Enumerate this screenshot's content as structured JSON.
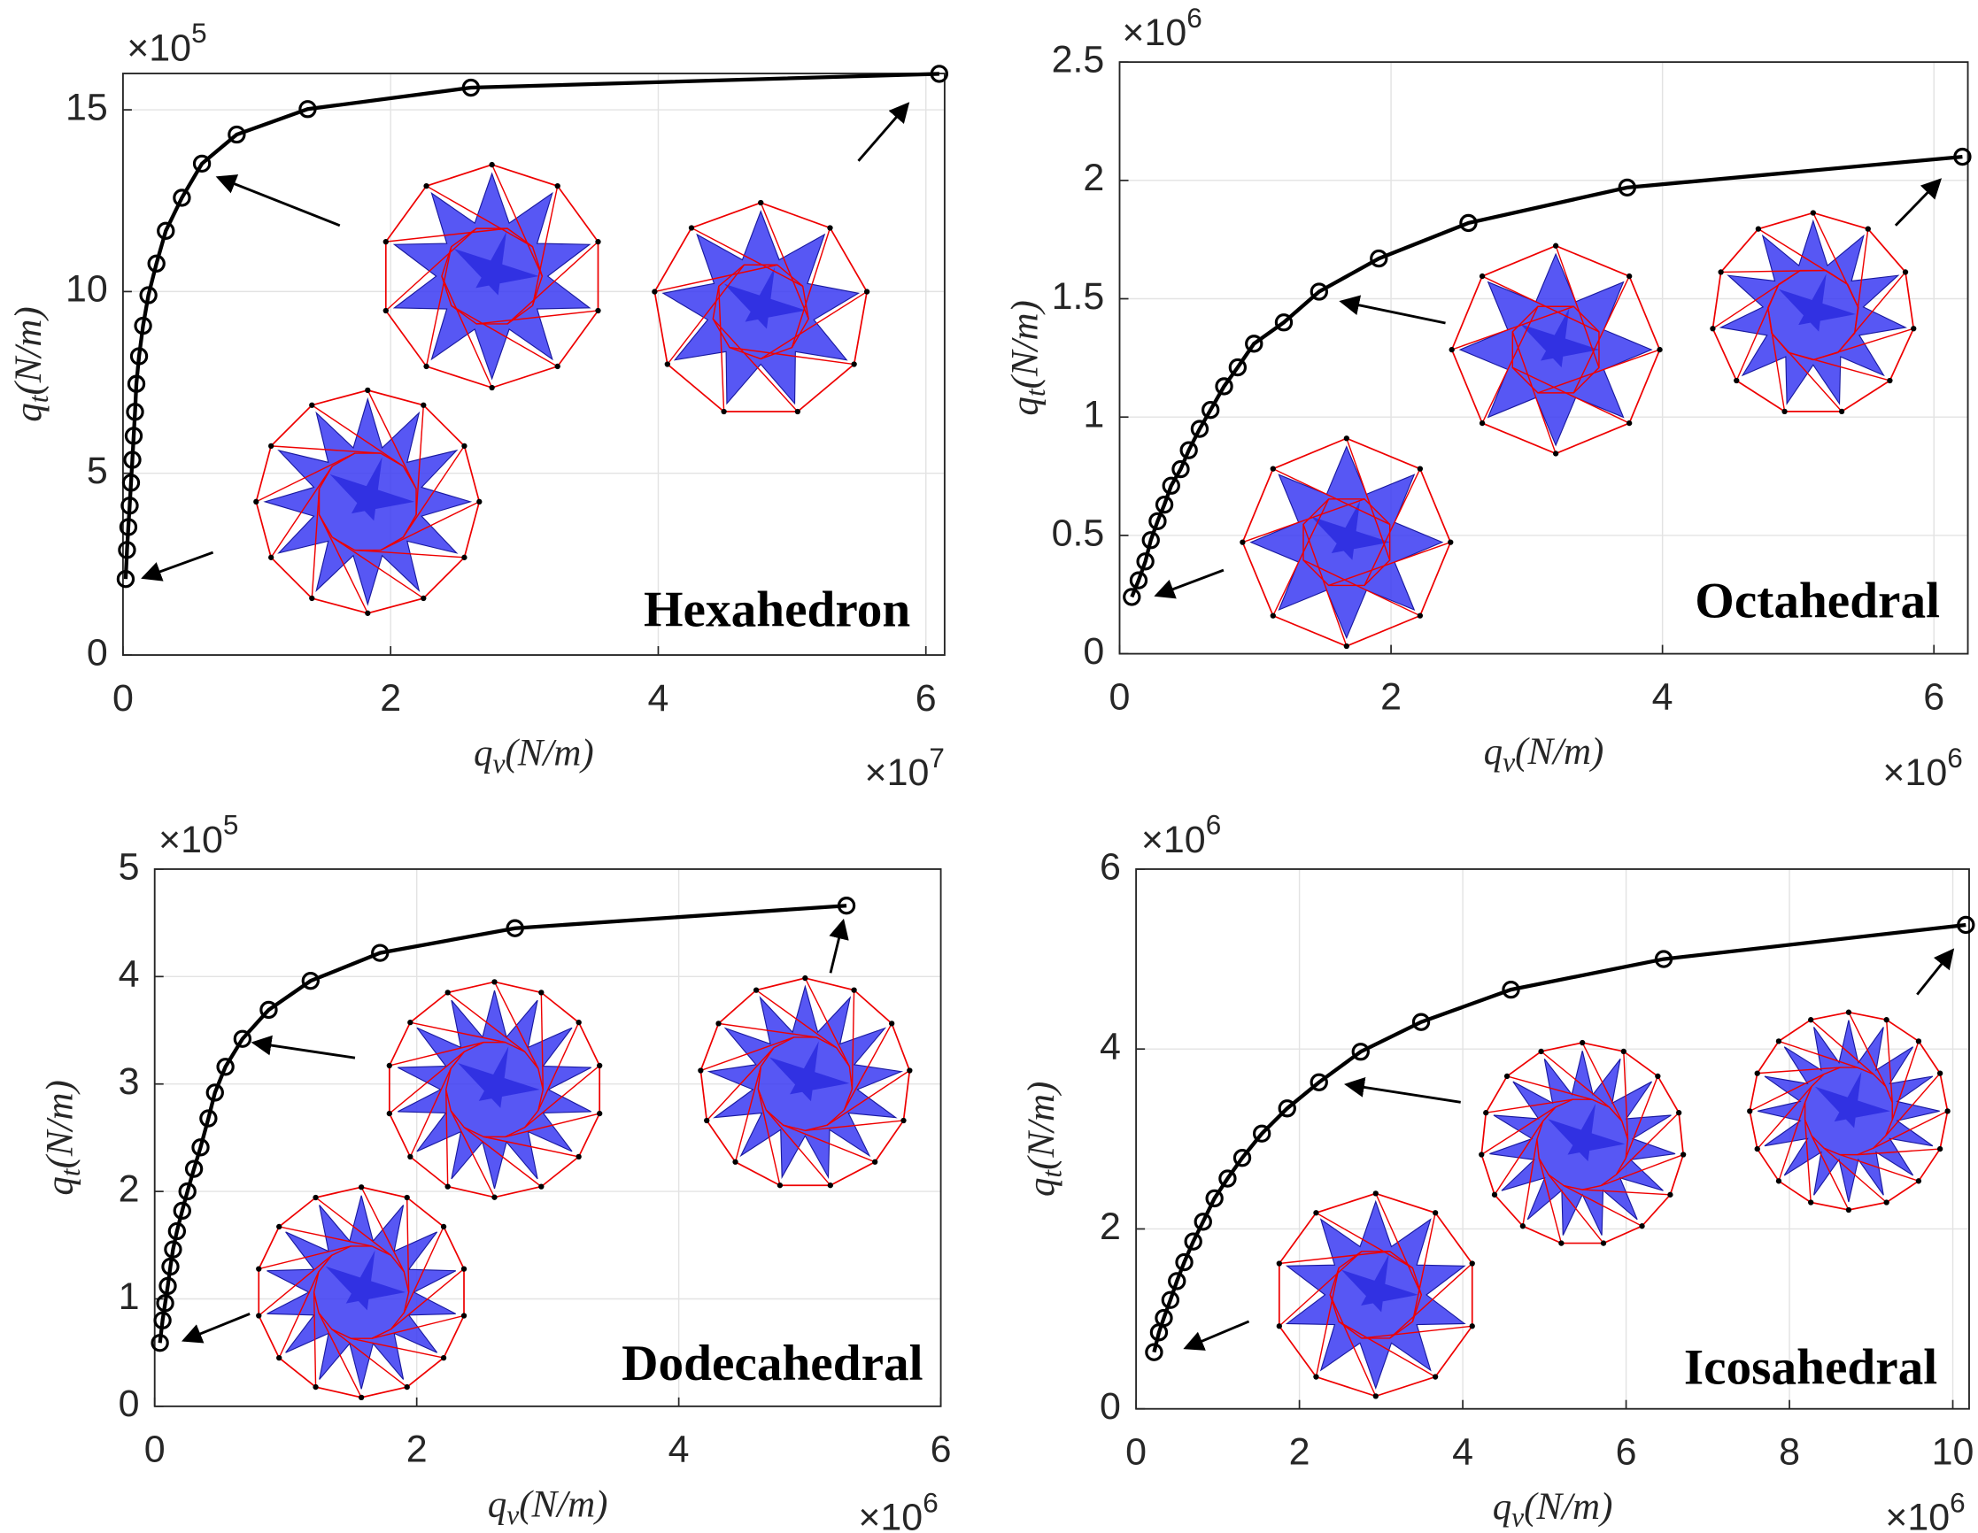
{
  "chart_data": [
    {
      "type": "line",
      "color": "#000000",
      "grid": true,
      "annotation": "Hexahedron",
      "xlabel": [
        "q",
        "v",
        "(N/m)"
      ],
      "ylabel": [
        "q",
        "t",
        "(N/m)"
      ],
      "x_multiplier": [
        "×10",
        "7"
      ],
      "y_multiplier": [
        "×10",
        "5"
      ],
      "xlim": [
        0,
        6.14
      ],
      "ylim": [
        0,
        16
      ],
      "xticks": [
        0,
        2,
        4,
        6
      ],
      "yticks": [
        0,
        5,
        10,
        15
      ],
      "x": [
        0.02,
        0.03,
        0.04,
        0.05,
        0.06,
        0.07,
        0.08,
        0.09,
        0.1,
        0.12,
        0.15,
        0.19,
        0.25,
        0.32,
        0.44,
        0.59,
        0.85,
        1.38,
        2.6,
        6.1
      ],
      "values": [
        2.09,
        2.89,
        3.52,
        4.11,
        4.74,
        5.37,
        6.03,
        6.69,
        7.46,
        8.22,
        9.06,
        9.9,
        10.77,
        11.67,
        12.58,
        13.52,
        14.32,
        15.02,
        15.61,
        15.99
      ]
    },
    {
      "type": "line",
      "color": "#000000",
      "grid": true,
      "annotation": "Octahedral",
      "xlabel": [
        "q",
        "v",
        "(N/m)"
      ],
      "ylabel": [
        "q",
        "t",
        "(N/m)"
      ],
      "x_multiplier": [
        "×10",
        "6"
      ],
      "y_multiplier": [
        "×10",
        "6"
      ],
      "xlim": [
        0,
        6.25
      ],
      "ylim": [
        0,
        2.5
      ],
      "xticks": [
        0,
        2,
        4,
        6
      ],
      "yticks": [
        0,
        0.5,
        1,
        1.5,
        2,
        2.5
      ],
      "x": [
        0.09,
        0.14,
        0.19,
        0.23,
        0.28,
        0.33,
        0.38,
        0.45,
        0.51,
        0.59,
        0.67,
        0.77,
        0.87,
        0.99,
        1.21,
        1.47,
        1.91,
        2.57,
        3.74,
        6.21
      ],
      "values": [
        0.24,
        0.31,
        0.39,
        0.48,
        0.56,
        0.63,
        0.71,
        0.78,
        0.86,
        0.95,
        1.03,
        1.13,
        1.21,
        1.31,
        1.4,
        1.53,
        1.67,
        1.82,
        1.97,
        2.1
      ]
    },
    {
      "type": "line",
      "color": "#000000",
      "grid": true,
      "annotation": "Dodecahedral",
      "xlabel": [
        "q",
        "v",
        "(N/m)"
      ],
      "ylabel": [
        "q",
        "t",
        "(N/m)"
      ],
      "x_multiplier": [
        "×10",
        "6"
      ],
      "y_multiplier": [
        "×10",
        "5"
      ],
      "xlim": [
        0,
        6
      ],
      "ylim": [
        0,
        5
      ],
      "xticks": [
        0,
        2,
        4,
        6
      ],
      "yticks": [
        0,
        1,
        2,
        3,
        4,
        5
      ],
      "x": [
        0.04,
        0.06,
        0.08,
        0.1,
        0.12,
        0.14,
        0.17,
        0.21,
        0.25,
        0.3,
        0.35,
        0.41,
        0.46,
        0.54,
        0.67,
        0.87,
        1.19,
        1.72,
        2.75,
        5.28
      ],
      "values": [
        0.59,
        0.8,
        0.96,
        1.12,
        1.3,
        1.46,
        1.63,
        1.82,
        2.0,
        2.21,
        2.41,
        2.68,
        2.92,
        3.16,
        3.42,
        3.69,
        3.96,
        4.22,
        4.45,
        4.66
      ]
    },
    {
      "type": "line",
      "color": "#000000",
      "grid": true,
      "annotation": "Icosahedral",
      "xlabel": [
        "q",
        "v",
        "(N/m)"
      ],
      "ylabel": [
        "q",
        "t",
        "(N/m)"
      ],
      "x_multiplier": [
        "×10",
        "6"
      ],
      "y_multiplier": [
        "×10",
        "6"
      ],
      "xlim": [
        0,
        10.2
      ],
      "ylim": [
        0,
        6
      ],
      "xticks": [
        0,
        2,
        4,
        6,
        8,
        10
      ],
      "yticks": [
        0,
        2,
        4,
        6
      ],
      "x": [
        0.22,
        0.28,
        0.34,
        0.42,
        0.5,
        0.59,
        0.7,
        0.82,
        0.96,
        1.12,
        1.3,
        1.54,
        1.85,
        2.24,
        2.75,
        3.49,
        4.59,
        6.46,
        10.16
      ],
      "values": [
        0.63,
        0.85,
        1.01,
        1.21,
        1.42,
        1.63,
        1.86,
        2.08,
        2.34,
        2.56,
        2.79,
        3.06,
        3.34,
        3.63,
        3.97,
        4.3,
        4.66,
        5.0,
        5.38
      ]
    }
  ]
}
